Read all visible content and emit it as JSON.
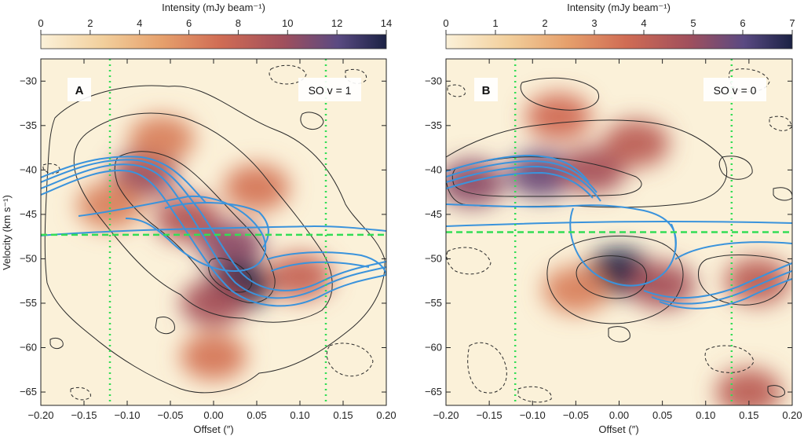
{
  "chart_data": [
    {
      "type": "heatmap",
      "panel_label": "A",
      "line_label": "SO v = 1",
      "colorbar": {
        "title": "Intensity (mJy beam⁻¹)",
        "range": [
          0,
          14
        ],
        "ticks": [
          0,
          2,
          4,
          6,
          8,
          10,
          12,
          14
        ]
      },
      "xlabel": "Offset (″)",
      "ylabel": "Velocity (km s⁻¹)",
      "xlim": [
        -0.2,
        0.2
      ],
      "ylim": [
        -66.5,
        -27.5
      ],
      "xticks": [
        -0.2,
        -0.15,
        -0.1,
        -0.05,
        0.0,
        0.05,
        0.1,
        0.15,
        0.2
      ],
      "yticks": [
        -30,
        -35,
        -40,
        -45,
        -50,
        -55,
        -60,
        -65
      ],
      "systemic_velocity": -47.3,
      "vertical_markers": [
        -0.12,
        0.13
      ],
      "emission_blobs": [
        {
          "x": -0.08,
          "y": -40.5,
          "peak": 9.5
        },
        {
          "x": -0.03,
          "y": -45.5,
          "peak": 8.5
        },
        {
          "x": 0.02,
          "y": -48.5,
          "peak": 10.0
        },
        {
          "x": 0.03,
          "y": -53.0,
          "peak": 14.0
        },
        {
          "x": 0.0,
          "y": -55.0,
          "peak": 9.0
        },
        {
          "x": -0.12,
          "y": -44.0,
          "peak": 6.0
        },
        {
          "x": 0.1,
          "y": -52.0,
          "peak": 7.5
        },
        {
          "x": 0.05,
          "y": -42.0,
          "peak": 6.5
        },
        {
          "x": -0.06,
          "y": -36.5,
          "peak": 6.0
        },
        {
          "x": 0.0,
          "y": -61.0,
          "peak": 6.5
        }
      ]
    },
    {
      "type": "heatmap",
      "panel_label": "B",
      "line_label": "SO v = 0",
      "colorbar": {
        "title": "Intensity (mJy beam⁻¹)",
        "range": [
          0,
          7
        ],
        "ticks": [
          0,
          1,
          2,
          3,
          4,
          5,
          6,
          7
        ]
      },
      "xlabel": "Offset (″)",
      "ylabel": "",
      "xlim": [
        -0.2,
        0.2
      ],
      "ylim": [
        -66.5,
        -27.5
      ],
      "xticks": [
        -0.2,
        -0.15,
        -0.1,
        -0.05,
        0.0,
        0.05,
        0.1,
        0.15,
        0.2
      ],
      "yticks": [
        -30,
        -35,
        -40,
        -45,
        -50,
        -55,
        -60,
        -65
      ],
      "systemic_velocity": -47.0,
      "vertical_markers": [
        -0.12,
        0.13
      ],
      "emission_blobs": [
        {
          "x": -0.17,
          "y": -41.5,
          "peak": 5.0
        },
        {
          "x": -0.09,
          "y": -40.5,
          "peak": 5.5
        },
        {
          "x": -0.03,
          "y": -40.0,
          "peak": 4.5
        },
        {
          "x": 0.02,
          "y": -37.0,
          "peak": 4.0
        },
        {
          "x": -0.07,
          "y": -34.0,
          "peak": 3.5
        },
        {
          "x": 0.0,
          "y": -51.5,
          "peak": 7.0
        },
        {
          "x": 0.05,
          "y": -53.0,
          "peak": 4.5
        },
        {
          "x": 0.16,
          "y": -52.5,
          "peak": 4.0
        },
        {
          "x": -0.05,
          "y": -53.5,
          "peak": 3.0
        },
        {
          "x": 0.15,
          "y": -65.0,
          "peak": 4.0
        }
      ]
    }
  ],
  "colors": {
    "colormap": [
      "#fbf1d9",
      "#f2cf9c",
      "#e6a06c",
      "#d06c54",
      "#a14f5c",
      "#5a4a82",
      "#1b2244"
    ],
    "model_contour": "#3a93dc",
    "marker_green": "#33dd55"
  }
}
